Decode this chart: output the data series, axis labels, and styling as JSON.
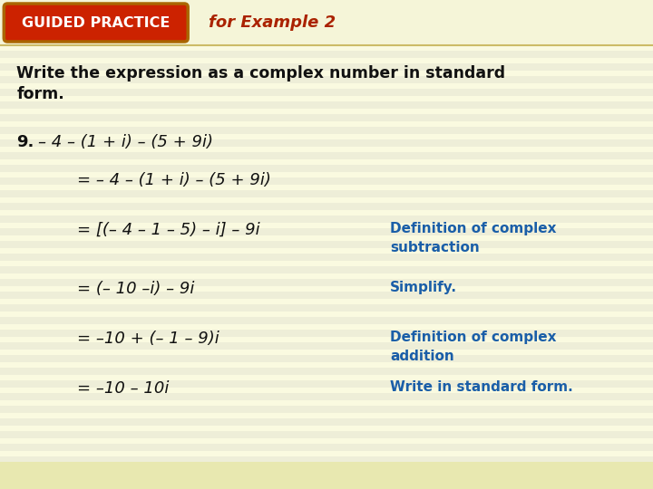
{
  "background_color": "#fafae0",
  "stripe_color": "#eeeed8",
  "header_bar_color": "#f5f5d8",
  "header_box_fill": "#cc2200",
  "header_box_edge": "#aa6600",
  "header_box_text": "GUIDED PRACTICE",
  "header_box_text_color": "#ffffff",
  "header_right_text": "for Example 2",
  "header_right_color": "#aa2200",
  "instruction_line1": "Write the expression as a complex number in standard",
  "instruction_line2": "form.",
  "instruction_color": "#111111",
  "problem_label": "9.",
  "problem_expr": "– 4 – (1 + i) – (5 + 9i)",
  "lines": [
    {
      "math": "= – 4 – (1 + i) – (5 + 9i)",
      "annotation": ""
    },
    {
      "math": "= [(– 4 – 1 – 5) – i] – 9i",
      "annotation": "Definition of complex\nsubtraction"
    },
    {
      "math": "= (– 10 –i) – 9i",
      "annotation": "Simplify."
    },
    {
      "math": "= –10 + (– 1 – 9)i",
      "annotation": "Definition of complex\naddition"
    },
    {
      "math": "= –10 – 10i",
      "annotation": "Write in standard form."
    }
  ],
  "annotation_color": "#1a5ea8",
  "math_color": "#111111",
  "figsize": [
    7.2,
    5.4
  ],
  "dpi": 100
}
